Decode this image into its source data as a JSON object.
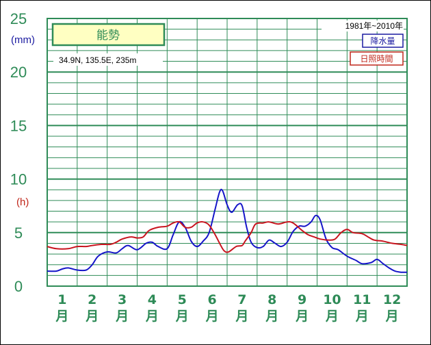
{
  "chart_data": {
    "type": "line",
    "title": "能勢",
    "location": "34.9N,  135.5E,  235m",
    "period": "1981年~2010年",
    "y_units": [
      "(mm)",
      "(h)"
    ],
    "y_ticks": [
      "25",
      "20",
      "15",
      "10",
      "5",
      "0"
    ],
    "ylim": [
      0,
      25
    ],
    "xlim": [
      0.5,
      12.5
    ],
    "x_labels": [
      {
        "num": "1",
        "unit": "月"
      },
      {
        "num": "2",
        "unit": "月"
      },
      {
        "num": "3",
        "unit": "月"
      },
      {
        "num": "4",
        "unit": "月"
      },
      {
        "num": "5",
        "unit": "月"
      },
      {
        "num": "6",
        "unit": "月"
      },
      {
        "num": "7",
        "unit": "月"
      },
      {
        "num": "8",
        "unit": "月"
      },
      {
        "num": "9",
        "unit": "月"
      },
      {
        "num": "10",
        "unit": "月"
      },
      {
        "num": "11",
        "unit": "月"
      },
      {
        "num": "12",
        "unit": "月"
      }
    ],
    "grid": true,
    "legend_position": "top-right",
    "series": [
      {
        "name": "降水量",
        "color": "#1515c8",
        "points": [
          [
            0.5,
            1.4
          ],
          [
            0.8,
            1.4
          ],
          [
            1.0,
            1.6
          ],
          [
            1.2,
            1.7
          ],
          [
            1.5,
            1.5
          ],
          [
            1.8,
            1.5
          ],
          [
            2.0,
            2.0
          ],
          [
            2.2,
            2.8
          ],
          [
            2.5,
            3.2
          ],
          [
            2.8,
            3.1
          ],
          [
            3.0,
            3.5
          ],
          [
            3.2,
            3.8
          ],
          [
            3.5,
            3.4
          ],
          [
            3.8,
            4.0
          ],
          [
            4.0,
            4.1
          ],
          [
            4.2,
            3.7
          ],
          [
            4.5,
            3.5
          ],
          [
            4.7,
            4.8
          ],
          [
            4.9,
            6.0
          ],
          [
            5.1,
            5.5
          ],
          [
            5.3,
            4.2
          ],
          [
            5.5,
            3.7
          ],
          [
            5.7,
            4.2
          ],
          [
            5.9,
            5.0
          ],
          [
            6.1,
            7.2
          ],
          [
            6.25,
            8.8
          ],
          [
            6.35,
            8.9
          ],
          [
            6.5,
            7.6
          ],
          [
            6.65,
            6.9
          ],
          [
            6.85,
            7.6
          ],
          [
            7.0,
            7.5
          ],
          [
            7.15,
            5.5
          ],
          [
            7.3,
            4.1
          ],
          [
            7.5,
            3.6
          ],
          [
            7.7,
            3.7
          ],
          [
            7.9,
            4.3
          ],
          [
            8.1,
            4.0
          ],
          [
            8.3,
            3.7
          ],
          [
            8.5,
            4.1
          ],
          [
            8.7,
            5.1
          ],
          [
            8.9,
            5.6
          ],
          [
            9.1,
            5.6
          ],
          [
            9.3,
            6.0
          ],
          [
            9.45,
            6.6
          ],
          [
            9.6,
            6.2
          ],
          [
            9.8,
            4.4
          ],
          [
            10.0,
            3.6
          ],
          [
            10.2,
            3.4
          ],
          [
            10.5,
            2.8
          ],
          [
            10.8,
            2.4
          ],
          [
            11.0,
            2.1
          ],
          [
            11.3,
            2.2
          ],
          [
            11.5,
            2.5
          ],
          [
            11.7,
            2.1
          ],
          [
            11.9,
            1.7
          ],
          [
            12.1,
            1.4
          ],
          [
            12.3,
            1.3
          ],
          [
            12.5,
            1.3
          ]
        ]
      },
      {
        "name": "日照時間",
        "color": "#c8141e",
        "points": [
          [
            0.5,
            3.7
          ],
          [
            0.8,
            3.5
          ],
          [
            1.2,
            3.5
          ],
          [
            1.5,
            3.7
          ],
          [
            1.8,
            3.7
          ],
          [
            2.0,
            3.8
          ],
          [
            2.3,
            3.9
          ],
          [
            2.6,
            3.9
          ],
          [
            2.8,
            4.1
          ],
          [
            3.0,
            4.4
          ],
          [
            3.3,
            4.6
          ],
          [
            3.5,
            4.5
          ],
          [
            3.7,
            4.6
          ],
          [
            3.9,
            5.2
          ],
          [
            4.2,
            5.5
          ],
          [
            4.5,
            5.6
          ],
          [
            4.7,
            5.9
          ],
          [
            4.9,
            6.0
          ],
          [
            5.1,
            5.5
          ],
          [
            5.3,
            5.5
          ],
          [
            5.5,
            5.9
          ],
          [
            5.7,
            6.0
          ],
          [
            5.9,
            5.7
          ],
          [
            6.1,
            4.8
          ],
          [
            6.25,
            4.0
          ],
          [
            6.4,
            3.3
          ],
          [
            6.55,
            3.2
          ],
          [
            6.8,
            3.7
          ],
          [
            7.0,
            3.8
          ],
          [
            7.1,
            4.2
          ],
          [
            7.3,
            5.0
          ],
          [
            7.45,
            5.8
          ],
          [
            7.7,
            5.9
          ],
          [
            7.9,
            6.0
          ],
          [
            8.2,
            5.8
          ],
          [
            8.5,
            6.0
          ],
          [
            8.7,
            5.9
          ],
          [
            9.0,
            5.2
          ],
          [
            9.2,
            4.8
          ],
          [
            9.4,
            4.6
          ],
          [
            9.6,
            4.4
          ],
          [
            9.9,
            4.3
          ],
          [
            10.1,
            4.4
          ],
          [
            10.3,
            5.0
          ],
          [
            10.5,
            5.3
          ],
          [
            10.7,
            5.0
          ],
          [
            11.0,
            4.9
          ],
          [
            11.2,
            4.6
          ],
          [
            11.4,
            4.3
          ],
          [
            11.7,
            4.2
          ],
          [
            12.0,
            4.0
          ],
          [
            12.3,
            3.9
          ],
          [
            12.5,
            3.8
          ]
        ]
      }
    ]
  }
}
